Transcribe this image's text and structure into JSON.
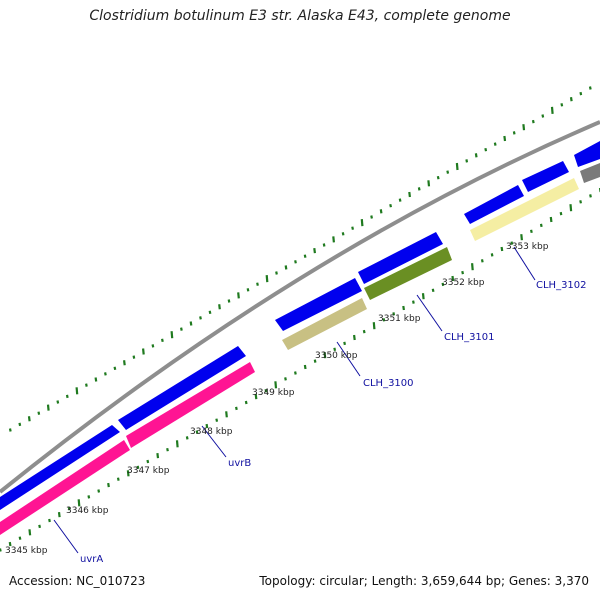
{
  "title": "Clostridium botulinum E3 str. Alaska E43, complete genome",
  "footer": {
    "accession": "Accession: NC_010723",
    "summary": "Topology: circular; Length: 3,659,644 bp; Genes: 3,370"
  },
  "colors": {
    "backbone": "#8e8e8e",
    "forward_feature": "#0000ee",
    "rna_feature": "#7a7a7a",
    "gc_tick": "#1f7a1f",
    "label": "#1010a0"
  },
  "kbp_labels": [
    "3345 kbp",
    "3346 kbp",
    "3347 kbp",
    "3348 kbp",
    "3349 kbp",
    "3350 kbp",
    "3351 kbp",
    "3352 kbp",
    "3353 kbp"
  ],
  "genes": [
    {
      "label": "uvrA",
      "color": "#ff1493"
    },
    {
      "label": "uvrB",
      "color": "#ff1493"
    },
    {
      "label": "CLH_3100",
      "color": "#c8c083"
    },
    {
      "label": "CLH_3101",
      "color": "#6a8f23"
    },
    {
      "label": "CLH_3102",
      "color": "#f5eea3"
    }
  ]
}
